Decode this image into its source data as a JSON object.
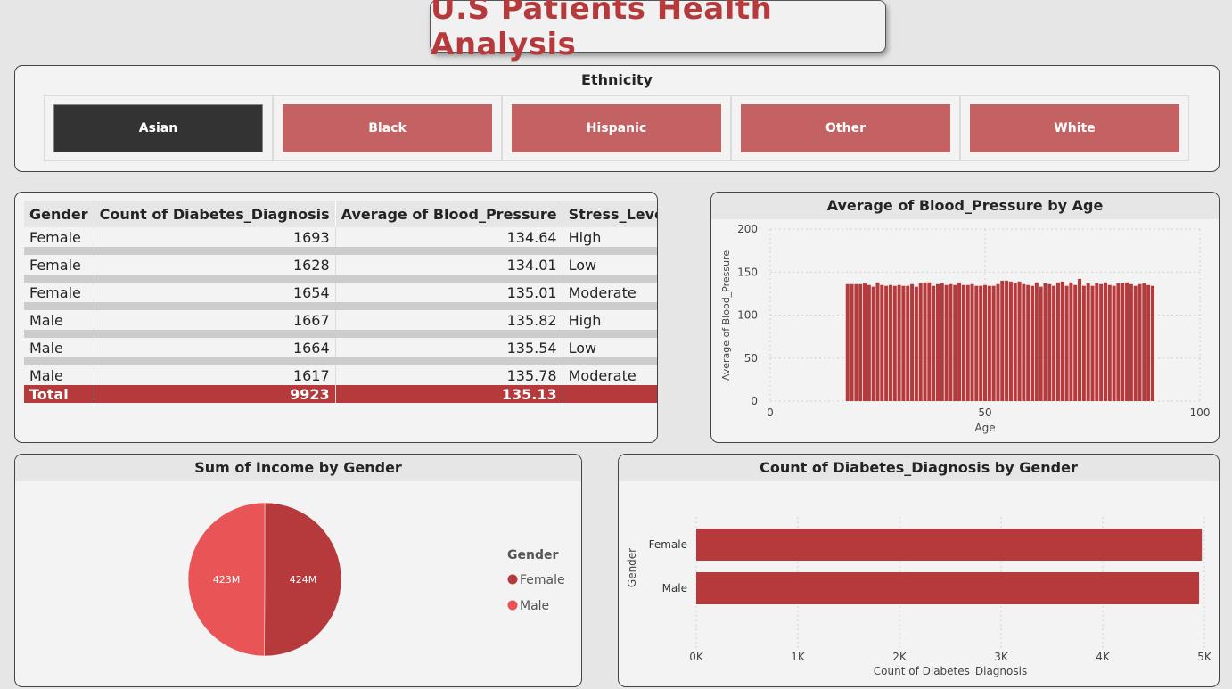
{
  "title": "U.S Patients Health Analysis",
  "slicer": {
    "title": "Ethnicity",
    "items": [
      {
        "label": "Asian",
        "selected": true
      },
      {
        "label": "Black",
        "selected": false
      },
      {
        "label": "Hispanic",
        "selected": false
      },
      {
        "label": "Other",
        "selected": false
      },
      {
        "label": "White",
        "selected": false
      }
    ]
  },
  "table": {
    "headers": [
      "Gender",
      "Count of Diabetes_Diagnosis",
      "Average of Blood_Pressure",
      "Stress_Level"
    ],
    "rows": [
      [
        "Female",
        "1693",
        "134.64",
        "High"
      ],
      [
        "Female",
        "1628",
        "134.01",
        "Low"
      ],
      [
        "Female",
        "1654",
        "135.01",
        "Moderate"
      ],
      [
        "Male",
        "1667",
        "135.82",
        "High"
      ],
      [
        "Male",
        "1664",
        "135.54",
        "Low"
      ],
      [
        "Male",
        "1617",
        "135.78",
        "Moderate"
      ]
    ],
    "total": [
      "Total",
      "9923",
      "135.13",
      ""
    ]
  },
  "colors": {
    "accent": "#b63a3c",
    "accent_light": "#e95457",
    "slicer": "#c46162",
    "selected": "#333333"
  },
  "chart_data": [
    {
      "type": "bar",
      "title": "Average of Blood_Pressure by Age",
      "xlabel": "Age",
      "ylabel": "Average of Blood_Pressure",
      "xlim": [
        0,
        100
      ],
      "ylim": [
        0,
        200
      ],
      "xticks": [
        "0",
        "50",
        "100"
      ],
      "yticks": [
        "0",
        "50",
        "100",
        "150",
        "200"
      ],
      "grid": true,
      "x": [
        18,
        19,
        20,
        21,
        22,
        23,
        24,
        25,
        26,
        27,
        28,
        29,
        30,
        31,
        32,
        33,
        34,
        35,
        36,
        37,
        38,
        39,
        40,
        41,
        42,
        43,
        44,
        45,
        46,
        47,
        48,
        49,
        50,
        51,
        52,
        53,
        54,
        55,
        56,
        57,
        58,
        59,
        60,
        61,
        62,
        63,
        64,
        65,
        66,
        67,
        68,
        69,
        70,
        71,
        72,
        73,
        74,
        75,
        76,
        77,
        78,
        79,
        80,
        81,
        82,
        83,
        84,
        85,
        86,
        87,
        88,
        89
      ],
      "values": [
        136,
        136,
        136,
        136,
        137,
        135,
        133,
        138,
        135,
        134,
        135,
        134,
        135,
        134,
        134,
        136,
        133,
        137,
        138,
        138,
        134,
        136,
        137,
        135,
        136,
        135,
        138,
        135,
        135,
        136,
        134,
        134,
        135,
        134,
        134,
        136,
        140,
        140,
        139,
        137,
        139,
        136,
        135,
        134,
        138,
        133,
        137,
        136,
        134,
        138,
        139,
        134,
        138,
        135,
        142,
        134,
        137,
        134,
        137,
        136,
        138,
        135,
        134,
        137,
        137,
        138,
        136,
        134,
        136,
        137,
        135,
        134
      ]
    },
    {
      "type": "pie",
      "title": "Sum of Income by Gender",
      "legend_title": "Gender",
      "legend": "right",
      "labels": [
        "Female",
        "Male"
      ],
      "values": [
        424,
        423
      ],
      "value_labels": [
        "424M",
        "423M"
      ],
      "colors": [
        "#b63a3c",
        "#e95457"
      ]
    },
    {
      "type": "bar",
      "orientation": "horizontal",
      "title": "Count of Diabetes_Diagnosis by Gender",
      "xlabel": "Count of Diabetes_Diagnosis",
      "ylabel": "Gender",
      "categories": [
        "Female",
        "Male"
      ],
      "values": [
        4975,
        4948
      ],
      "xlim": [
        0,
        5000
      ],
      "xticks": [
        "0K",
        "1K",
        "2K",
        "3K",
        "4K",
        "5K"
      ],
      "grid": true
    }
  ]
}
